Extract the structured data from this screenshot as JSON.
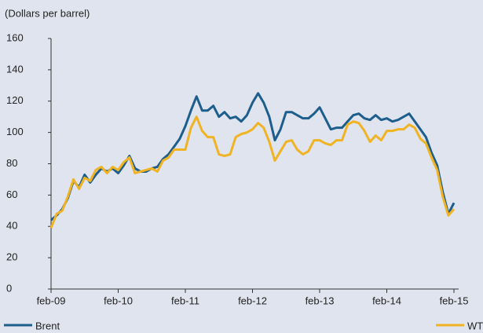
{
  "chart_data": {
    "type": "line",
    "title": "(Dollars per barrel)",
    "categories": [
      "feb-09",
      null,
      null,
      null,
      null,
      null,
      null,
      null,
      null,
      null,
      null,
      null,
      "feb-10",
      null,
      null,
      null,
      null,
      null,
      null,
      null,
      null,
      null,
      null,
      null,
      "feb-11",
      null,
      null,
      null,
      null,
      null,
      null,
      null,
      null,
      null,
      null,
      null,
      "feb-12",
      null,
      null,
      null,
      null,
      null,
      null,
      null,
      null,
      null,
      null,
      null,
      "feb-13",
      null,
      null,
      null,
      null,
      null,
      null,
      null,
      null,
      null,
      null,
      null,
      "feb-14",
      null,
      null,
      null,
      null,
      null,
      null,
      null,
      null,
      null,
      null,
      null,
      "feb-15"
    ],
    "series": [
      {
        "name": "Brent",
        "color": "#1d5e8c",
        "values": [
          44,
          47,
          51,
          58,
          69,
          65,
          73,
          68,
          73,
          77,
          75,
          77,
          74,
          79,
          85,
          77,
          75,
          75,
          77,
          78,
          83,
          86,
          91,
          96,
          104,
          114,
          123,
          114,
          114,
          117,
          110,
          113,
          109,
          110,
          107,
          111,
          119,
          125,
          119,
          110,
          95,
          102,
          113,
          113,
          111,
          109,
          109,
          112,
          116,
          109,
          102,
          103,
          103,
          107,
          111,
          112,
          109,
          108,
          111,
          108,
          109,
          107,
          108,
          110,
          112,
          107,
          102,
          97,
          87,
          79,
          62,
          48,
          55
        ]
      },
      {
        "name": "WTI",
        "color": "#f0b323",
        "values": [
          39,
          48,
          50,
          59,
          70,
          64,
          71,
          69,
          76,
          78,
          74,
          78,
          76,
          81,
          84,
          74,
          75,
          76,
          77,
          75,
          82,
          84,
          89,
          89,
          89,
          103,
          110,
          101,
          97,
          97,
          86,
          85,
          86,
          97,
          99,
          100,
          102,
          106,
          103,
          94,
          82,
          88,
          94,
          95,
          89,
          86,
          88,
          95,
          95,
          93,
          92,
          95,
          95,
          105,
          107,
          106,
          101,
          94,
          98,
          95,
          101,
          101,
          102,
          102,
          105,
          103,
          96,
          93,
          84,
          76,
          59,
          47,
          51
        ]
      }
    ],
    "ylim": [
      0,
      160
    ],
    "yticks": [
      0,
      20,
      40,
      60,
      80,
      100,
      120,
      140,
      160
    ]
  }
}
